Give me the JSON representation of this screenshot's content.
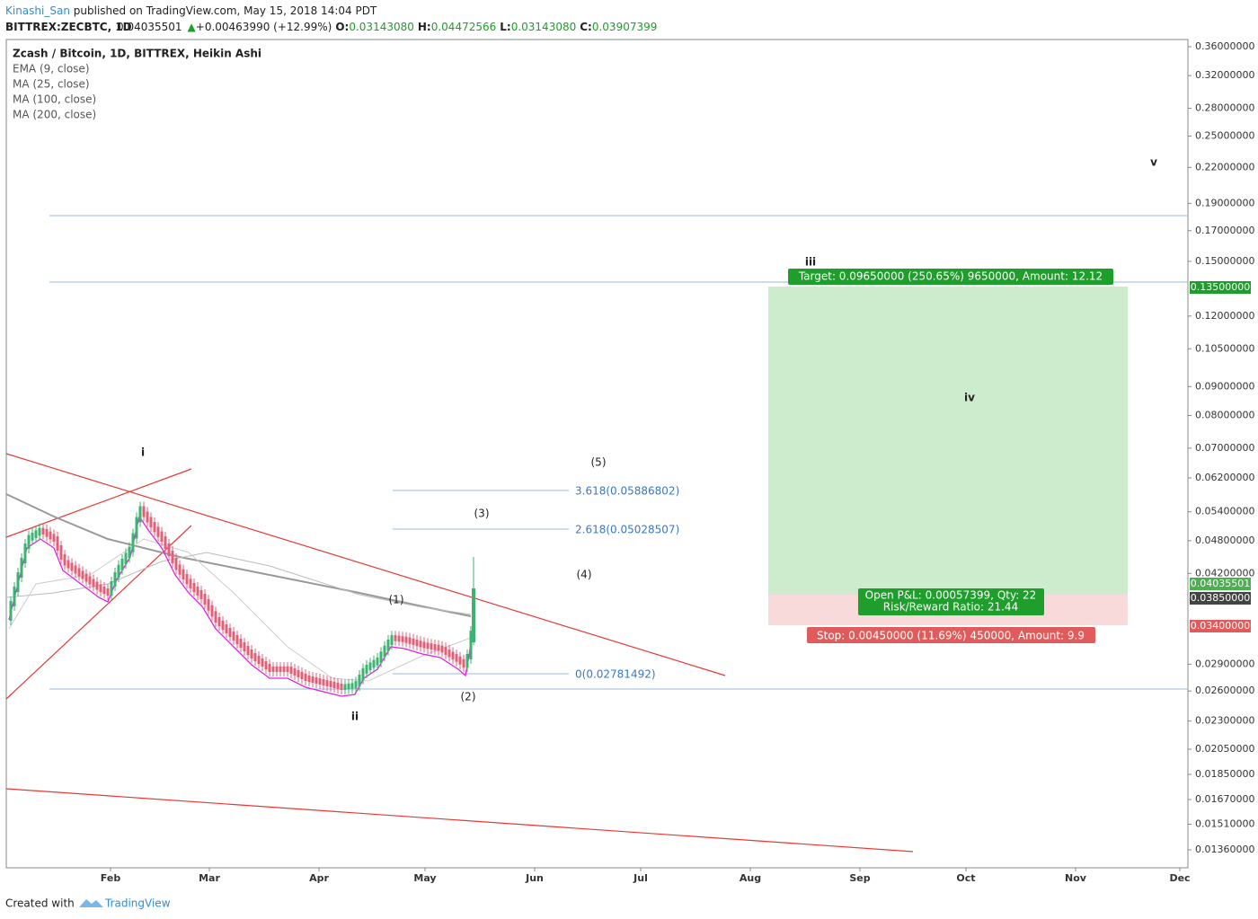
{
  "header": {
    "author": "Kinashi_San",
    "published": "published on TradingView.com, May 15, 2018 14:04 PDT",
    "symbol": "BITTREX:ZECBTC, 1D",
    "last": "0.04035501",
    "change": "+0.00463990 (+12.99%)",
    "ohlc": [
      {
        "label": "O:",
        "value": "0.03143080"
      },
      {
        "label": "H:",
        "value": "0.04472566"
      },
      {
        "label": "L:",
        "value": "0.03143080"
      },
      {
        "label": "C:",
        "value": "0.03907399"
      }
    ]
  },
  "legend": {
    "title": "Zcash / Bitcoin, 1D, BITTREX, Heikin Ashi",
    "indicators": [
      "EMA (9, close)",
      "MA (25, close)",
      "MA (100, close)",
      "MA (200, close)"
    ]
  },
  "price_axis": [
    "0.36000000",
    "0.32000000",
    "0.28000000",
    "0.25000000",
    "0.22000000",
    "0.19000000",
    "0.17000000",
    "0.15000000",
    "0.12000000",
    "0.10500000",
    "0.09000000",
    "0.08000000",
    "0.07000000",
    "0.06200000",
    "0.05400000",
    "0.04800000",
    "0.04200000",
    "0.02900000",
    "0.02600000",
    "0.02300000",
    "0.02050000",
    "0.01850000",
    "0.01670000",
    "0.01510000",
    "0.01360000"
  ],
  "price_badges": {
    "target": "0.13500000",
    "last": "0.04035501",
    "entry": "0.03850000",
    "stop": "0.03400000"
  },
  "time_axis": [
    "Feb",
    "Mar",
    "Apr",
    "May",
    "Jun",
    "Jul",
    "Aug",
    "Sep",
    "Oct",
    "Nov",
    "Dec"
  ],
  "waves": {
    "i": "i",
    "ii": "ii",
    "iii": "iii",
    "iv": "iv",
    "v": "v"
  },
  "sub_waves": [
    "(1)",
    "(2)",
    "(3)",
    "(4)",
    "(5)"
  ],
  "fib": [
    "3.618(0.05886802)",
    "2.618(0.05028507)",
    "0(0.02781492)"
  ],
  "position": {
    "target": "Target: 0.09650000 (250.65%) 9650000, Amount: 12.12",
    "pnl": "Open P&L: 0.00057399, Qty: 22",
    "rr": "Risk/Reward Ratio: 21.44",
    "stop": "Stop: 0.00450000 (11.69%) 450000, Amount: 9.9"
  },
  "footer": {
    "created": "Created with",
    "brand": "TradingView"
  }
}
